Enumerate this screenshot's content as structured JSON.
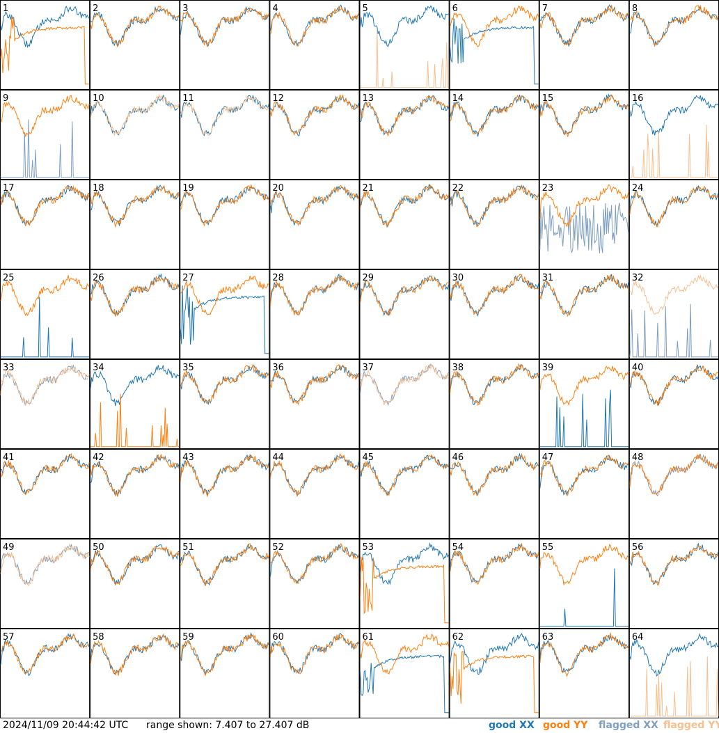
{
  "timestamp": "2024/11/09 20:44:42 UTC",
  "range_text": "range shown: 7.407 to 27.407 dB",
  "legend": [
    {
      "label": "good XX",
      "color": "#1f77b4"
    },
    {
      "label": "good YY",
      "color": "#ff7f0e"
    },
    {
      "label": "flagged XX",
      "color": "#7f9fbf"
    },
    {
      "label": "flagged YY",
      "color": "#f7bf8f"
    }
  ],
  "chart_data": {
    "type": "line",
    "title": "",
    "ylim": [
      7.407,
      27.407
    ],
    "yunit": "dB",
    "grid_layout": "8x8",
    "panels": [
      {
        "id": "1",
        "xx": "good",
        "yy": "good",
        "xx_shape": "normal",
        "yy_shape": "decay"
      },
      {
        "id": "2",
        "xx": "good",
        "yy": "good",
        "xx_shape": "normal",
        "yy_shape": "normal"
      },
      {
        "id": "3",
        "xx": "good",
        "yy": "good",
        "xx_shape": "normal",
        "yy_shape": "normal"
      },
      {
        "id": "4",
        "xx": "good",
        "yy": "good",
        "xx_shape": "normal",
        "yy_shape": "normal"
      },
      {
        "id": "5",
        "xx": "good",
        "yy": "flagged",
        "xx_shape": "normal",
        "yy_shape": "spikes"
      },
      {
        "id": "6",
        "xx": "good",
        "yy": "good",
        "xx_shape": "decay",
        "yy_shape": "normal"
      },
      {
        "id": "7",
        "xx": "good",
        "yy": "good",
        "xx_shape": "normal",
        "yy_shape": "normal"
      },
      {
        "id": "8",
        "xx": "good",
        "yy": "good",
        "xx_shape": "normal",
        "yy_shape": "normal"
      },
      {
        "id": "9",
        "xx": "flagged",
        "yy": "good",
        "xx_shape": "spikes",
        "yy_shape": "normal"
      },
      {
        "id": "10",
        "xx": "good",
        "yy": "flagged",
        "xx_shape": "normal",
        "yy_shape": "normal"
      },
      {
        "id": "11",
        "xx": "good",
        "yy": "flagged",
        "xx_shape": "normal",
        "yy_shape": "normal"
      },
      {
        "id": "12",
        "xx": "good",
        "yy": "good",
        "xx_shape": "normal",
        "yy_shape": "normal"
      },
      {
        "id": "13",
        "xx": "good",
        "yy": "good",
        "xx_shape": "normal",
        "yy_shape": "normal"
      },
      {
        "id": "14",
        "xx": "good",
        "yy": "good",
        "xx_shape": "normal",
        "yy_shape": "normal"
      },
      {
        "id": "15",
        "xx": "good",
        "yy": "good",
        "xx_shape": "normal",
        "yy_shape": "normal"
      },
      {
        "id": "16",
        "xx": "good",
        "yy": "flagged",
        "xx_shape": "normal",
        "yy_shape": "spikes"
      },
      {
        "id": "17",
        "xx": "good",
        "yy": "good",
        "xx_shape": "normal",
        "yy_shape": "normal"
      },
      {
        "id": "18",
        "xx": "good",
        "yy": "good",
        "xx_shape": "normal",
        "yy_shape": "normal"
      },
      {
        "id": "19",
        "xx": "good",
        "yy": "good",
        "xx_shape": "normal",
        "yy_shape": "normal"
      },
      {
        "id": "20",
        "xx": "good",
        "yy": "good",
        "xx_shape": "normal",
        "yy_shape": "normal"
      },
      {
        "id": "21",
        "xx": "good",
        "yy": "good",
        "xx_shape": "normal",
        "yy_shape": "normal"
      },
      {
        "id": "22",
        "xx": "good",
        "yy": "good",
        "xx_shape": "normal",
        "yy_shape": "normal"
      },
      {
        "id": "23",
        "xx": "flagged",
        "yy": "good",
        "xx_shape": "noisy",
        "yy_shape": "normal"
      },
      {
        "id": "24",
        "xx": "good",
        "yy": "good",
        "xx_shape": "normal",
        "yy_shape": "normal"
      },
      {
        "id": "25",
        "xx": "good",
        "yy": "good",
        "xx_shape": "spikes",
        "yy_shape": "normal"
      },
      {
        "id": "26",
        "xx": "good",
        "yy": "good",
        "xx_shape": "normal",
        "yy_shape": "normal"
      },
      {
        "id": "27",
        "xx": "good",
        "yy": "good",
        "xx_shape": "decay",
        "yy_shape": "normal"
      },
      {
        "id": "28",
        "xx": "good",
        "yy": "good",
        "xx_shape": "normal",
        "yy_shape": "normal"
      },
      {
        "id": "29",
        "xx": "good",
        "yy": "good",
        "xx_shape": "normal",
        "yy_shape": "normal"
      },
      {
        "id": "30",
        "xx": "good",
        "yy": "good",
        "xx_shape": "normal",
        "yy_shape": "normal"
      },
      {
        "id": "31",
        "xx": "good",
        "yy": "good",
        "xx_shape": "normal",
        "yy_shape": "normal"
      },
      {
        "id": "32",
        "xx": "flagged",
        "yy": "flagged",
        "xx_shape": "spikes",
        "yy_shape": "normal"
      },
      {
        "id": "33",
        "xx": "flagged",
        "yy": "flagged",
        "xx_shape": "normal",
        "yy_shape": "normal"
      },
      {
        "id": "34",
        "xx": "good",
        "yy": "good",
        "xx_shape": "normal",
        "yy_shape": "spikes"
      },
      {
        "id": "35",
        "xx": "good",
        "yy": "good",
        "xx_shape": "normal",
        "yy_shape": "normal"
      },
      {
        "id": "36",
        "xx": "good",
        "yy": "good",
        "xx_shape": "normal",
        "yy_shape": "normal"
      },
      {
        "id": "37",
        "xx": "flagged",
        "yy": "flagged",
        "xx_shape": "normal",
        "yy_shape": "normal"
      },
      {
        "id": "38",
        "xx": "good",
        "yy": "good",
        "xx_shape": "normal",
        "yy_shape": "normal"
      },
      {
        "id": "39",
        "xx": "good",
        "yy": "good",
        "xx_shape": "spikes",
        "yy_shape": "normal"
      },
      {
        "id": "40",
        "xx": "good",
        "yy": "good",
        "xx_shape": "normal",
        "yy_shape": "normal"
      },
      {
        "id": "41",
        "xx": "good",
        "yy": "good",
        "xx_shape": "normal",
        "yy_shape": "normal"
      },
      {
        "id": "42",
        "xx": "good",
        "yy": "good",
        "xx_shape": "normal",
        "yy_shape": "normal"
      },
      {
        "id": "43",
        "xx": "good",
        "yy": "good",
        "xx_shape": "normal",
        "yy_shape": "normal"
      },
      {
        "id": "44",
        "xx": "good",
        "yy": "good",
        "xx_shape": "normal",
        "yy_shape": "normal"
      },
      {
        "id": "45",
        "xx": "good",
        "yy": "good",
        "xx_shape": "normal",
        "yy_shape": "normal"
      },
      {
        "id": "46",
        "xx": "good",
        "yy": "good",
        "xx_shape": "normal",
        "yy_shape": "normal"
      },
      {
        "id": "47",
        "xx": "good",
        "yy": "good",
        "xx_shape": "normal",
        "yy_shape": "normal"
      },
      {
        "id": "48",
        "xx": "flagged",
        "yy": "good",
        "xx_shape": "normal",
        "yy_shape": "normal"
      },
      {
        "id": "49",
        "xx": "flagged",
        "yy": "flagged",
        "xx_shape": "normal",
        "yy_shape": "normal"
      },
      {
        "id": "50",
        "xx": "good",
        "yy": "good",
        "xx_shape": "normal",
        "yy_shape": "normal"
      },
      {
        "id": "51",
        "xx": "good",
        "yy": "good",
        "xx_shape": "normal",
        "yy_shape": "normal"
      },
      {
        "id": "52",
        "xx": "good",
        "yy": "good",
        "xx_shape": "normal",
        "yy_shape": "normal"
      },
      {
        "id": "53",
        "xx": "good",
        "yy": "good",
        "xx_shape": "normal",
        "yy_shape": "decay"
      },
      {
        "id": "54",
        "xx": "good",
        "yy": "good",
        "xx_shape": "normal",
        "yy_shape": "normal"
      },
      {
        "id": "55",
        "xx": "good",
        "yy": "good",
        "xx_shape": "spikes",
        "yy_shape": "normal"
      },
      {
        "id": "56",
        "xx": "good",
        "yy": "good",
        "xx_shape": "normal",
        "yy_shape": "normal"
      },
      {
        "id": "57",
        "xx": "good",
        "yy": "good",
        "xx_shape": "normal",
        "yy_shape": "normal"
      },
      {
        "id": "58",
        "xx": "good",
        "yy": "good",
        "xx_shape": "normal",
        "yy_shape": "normal"
      },
      {
        "id": "59",
        "xx": "good",
        "yy": "good",
        "xx_shape": "normal",
        "yy_shape": "normal"
      },
      {
        "id": "60",
        "xx": "good",
        "yy": "good",
        "xx_shape": "normal",
        "yy_shape": "normal"
      },
      {
        "id": "61",
        "xx": "good",
        "yy": "good",
        "xx_shape": "decay",
        "yy_shape": "normal"
      },
      {
        "id": "62",
        "xx": "good",
        "yy": "good",
        "xx_shape": "normal",
        "yy_shape": "decay"
      },
      {
        "id": "63",
        "xx": "good",
        "yy": "good",
        "xx_shape": "normal",
        "yy_shape": "normal"
      },
      {
        "id": "64",
        "xx": "good",
        "yy": "flagged",
        "xx_shape": "normal",
        "yy_shape": "spikes"
      }
    ]
  }
}
